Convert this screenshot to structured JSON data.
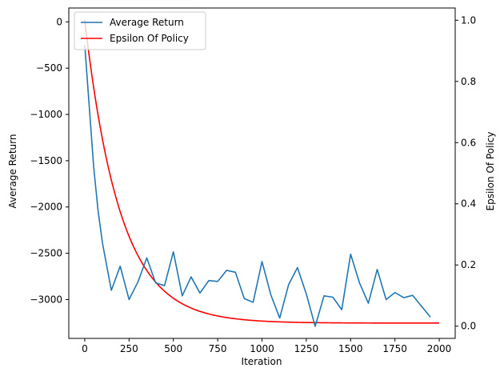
{
  "chart_data": {
    "type": "line",
    "xlabel": "Iteration",
    "ylabel": "Average Return",
    "y2label": "Epsilon Of Policy",
    "xlim": [
      -90,
      2090
    ],
    "ylim": [
      -3420,
      150
    ],
    "y2lim": [
      -0.04,
      1.04
    ],
    "xticks": [
      0,
      250,
      500,
      750,
      1000,
      1250,
      1500,
      1750,
      2000
    ],
    "yticks": [
      0,
      -500,
      -1000,
      -1500,
      -2000,
      -2500,
      -3000
    ],
    "y2ticks": [
      0.0,
      0.2,
      0.4,
      0.6,
      0.8,
      1.0
    ],
    "grid": false,
    "legend_position": "top-left",
    "series": [
      {
        "name": "Average Return",
        "axis": "left",
        "color": "#1f77b4",
        "x": [
          0,
          50,
          75,
          100,
          150,
          200,
          250,
          300,
          350,
          400,
          450,
          500,
          550,
          600,
          650,
          700,
          750,
          800,
          850,
          900,
          950,
          1000,
          1050,
          1100,
          1150,
          1200,
          1250,
          1300,
          1350,
          1400,
          1450,
          1500,
          1550,
          1600,
          1650,
          1700,
          1750,
          1800,
          1850,
          1950
        ],
        "y": [
          -250,
          -1560,
          -2040,
          -2390,
          -2900,
          -2640,
          -3000,
          -2810,
          -2550,
          -2820,
          -2850,
          -2485,
          -2960,
          -2755,
          -2930,
          -2795,
          -2805,
          -2685,
          -2705,
          -2990,
          -3030,
          -2590,
          -2950,
          -3200,
          -2840,
          -2655,
          -2940,
          -3290,
          -2960,
          -2975,
          -3110,
          -2510,
          -2820,
          -3040,
          -2675,
          -3000,
          -2925,
          -2980,
          -2955,
          -3190
        ]
      },
      {
        "name": "Epsilon Of Policy",
        "axis": "right",
        "color": "#ff0000",
        "x_range": [
          0,
          2000
        ],
        "y_formula": "0.01 + 0.99 * exp(-x / 200)"
      }
    ]
  }
}
